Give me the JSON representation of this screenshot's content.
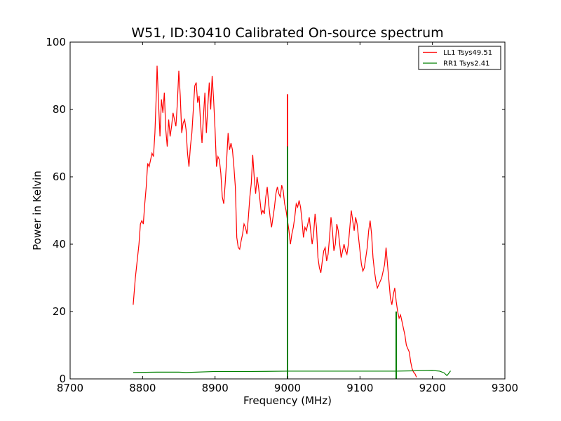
{
  "chart_data": {
    "type": "line",
    "title": "W51, ID:30410 Calibrated On-source spectrum",
    "xlabel": "Frequency (MHz)",
    "ylabel": "Power in Kelvin",
    "xlim": [
      8700,
      9300
    ],
    "ylim": [
      0,
      100
    ],
    "xticks": [
      8700,
      8800,
      8900,
      9000,
      9100,
      9200,
      9300
    ],
    "yticks": [
      0,
      20,
      40,
      60,
      80,
      100
    ],
    "grid": false,
    "legend_position": "top-right",
    "series": [
      {
        "name": "LL1 Tsys49.51",
        "color": "#ff0000",
        "points": [
          [
            8787,
            22
          ],
          [
            8790,
            30
          ],
          [
            8793,
            36
          ],
          [
            8795,
            40
          ],
          [
            8797,
            46
          ],
          [
            8799,
            47
          ],
          [
            8801,
            46
          ],
          [
            8803,
            52
          ],
          [
            8805,
            57
          ],
          [
            8807,
            64
          ],
          [
            8809,
            63
          ],
          [
            8811,
            65
          ],
          [
            8813,
            67
          ],
          [
            8815,
            66
          ],
          [
            8817,
            73
          ],
          [
            8819,
            85
          ],
          [
            8820,
            93
          ],
          [
            8822,
            82
          ],
          [
            8824,
            72
          ],
          [
            8826,
            83
          ],
          [
            8828,
            79
          ],
          [
            8830,
            85
          ],
          [
            8832,
            74
          ],
          [
            8834,
            69
          ],
          [
            8836,
            77
          ],
          [
            8838,
            72
          ],
          [
            8840,
            75
          ],
          [
            8842,
            79
          ],
          [
            8844,
            77
          ],
          [
            8846,
            75
          ],
          [
            8848,
            82
          ],
          [
            8850,
            91.5
          ],
          [
            8852,
            84
          ],
          [
            8854,
            73
          ],
          [
            8856,
            76
          ],
          [
            8858,
            77
          ],
          [
            8860,
            74
          ],
          [
            8862,
            67
          ],
          [
            8864,
            63
          ],
          [
            8866,
            69
          ],
          [
            8868,
            73
          ],
          [
            8870,
            80
          ],
          [
            8872,
            87
          ],
          [
            8874,
            88
          ],
          [
            8876,
            82
          ],
          [
            8878,
            84
          ],
          [
            8880,
            76
          ],
          [
            8882,
            70
          ],
          [
            8884,
            78
          ],
          [
            8886,
            85
          ],
          [
            8888,
            73
          ],
          [
            8890,
            81
          ],
          [
            8892,
            88
          ],
          [
            8894,
            80
          ],
          [
            8896,
            90
          ],
          [
            8898,
            83
          ],
          [
            8900,
            74
          ],
          [
            8902,
            63
          ],
          [
            8904,
            66
          ],
          [
            8906,
            65
          ],
          [
            8908,
            61
          ],
          [
            8910,
            54
          ],
          [
            8912,
            52
          ],
          [
            8914,
            58
          ],
          [
            8916,
            65
          ],
          [
            8918,
            73
          ],
          [
            8920,
            68
          ],
          [
            8922,
            70
          ],
          [
            8924,
            68
          ],
          [
            8926,
            63
          ],
          [
            8928,
            57
          ],
          [
            8930,
            42
          ],
          [
            8932,
            39
          ],
          [
            8934,
            38.5
          ],
          [
            8936,
            41
          ],
          [
            8938,
            43
          ],
          [
            8940,
            46
          ],
          [
            8942,
            45
          ],
          [
            8944,
            43
          ],
          [
            8946,
            48
          ],
          [
            8948,
            54
          ],
          [
            8950,
            58
          ],
          [
            8952,
            66.5
          ],
          [
            8954,
            60
          ],
          [
            8956,
            55
          ],
          [
            8958,
            60
          ],
          [
            8960,
            57
          ],
          [
            8962,
            53
          ],
          [
            8964,
            49
          ],
          [
            8966,
            50
          ],
          [
            8968,
            49
          ],
          [
            8970,
            54
          ],
          [
            8972,
            57
          ],
          [
            8974,
            52
          ],
          [
            8976,
            48
          ],
          [
            8978,
            45
          ],
          [
            8980,
            48
          ],
          [
            8982,
            51
          ],
          [
            8984,
            55
          ],
          [
            8986,
            57
          ],
          [
            8988,
            55
          ],
          [
            8990,
            54
          ],
          [
            8992,
            57.5
          ],
          [
            8994,
            56
          ],
          [
            8996,
            52
          ],
          [
            8998,
            50
          ],
          [
            9000,
            47
          ],
          [
            9002,
            44
          ],
          [
            9004,
            40
          ],
          [
            9006,
            43
          ],
          [
            9008,
            45
          ],
          [
            9010,
            48
          ],
          [
            9012,
            52
          ],
          [
            9014,
            51
          ],
          [
            9016,
            53
          ],
          [
            9018,
            51
          ],
          [
            9020,
            47
          ],
          [
            9022,
            42
          ],
          [
            9024,
            45
          ],
          [
            9026,
            44
          ],
          [
            9028,
            46
          ],
          [
            9030,
            48
          ],
          [
            9032,
            44
          ],
          [
            9034,
            40
          ],
          [
            9036,
            43
          ],
          [
            9038,
            49
          ],
          [
            9040,
            45
          ],
          [
            9042,
            36
          ],
          [
            9044,
            33
          ],
          [
            9046,
            31.5
          ],
          [
            9048,
            35
          ],
          [
            9050,
            38
          ],
          [
            9052,
            39
          ],
          [
            9054,
            35
          ],
          [
            9056,
            37
          ],
          [
            9058,
            42
          ],
          [
            9060,
            48
          ],
          [
            9062,
            44
          ],
          [
            9064,
            38
          ],
          [
            9066,
            40
          ],
          [
            9068,
            46
          ],
          [
            9070,
            44
          ],
          [
            9072,
            40
          ],
          [
            9074,
            36
          ],
          [
            9076,
            38
          ],
          [
            9078,
            40
          ],
          [
            9080,
            38
          ],
          [
            9082,
            37
          ],
          [
            9084,
            40
          ],
          [
            9086,
            45
          ],
          [
            9088,
            50
          ],
          [
            9090,
            47
          ],
          [
            9092,
            44
          ],
          [
            9094,
            48
          ],
          [
            9096,
            46
          ],
          [
            9098,
            42
          ],
          [
            9100,
            38
          ],
          [
            9102,
            34
          ],
          [
            9104,
            32
          ],
          [
            9106,
            33
          ],
          [
            9108,
            36
          ],
          [
            9110,
            39
          ],
          [
            9112,
            44
          ],
          [
            9114,
            47
          ],
          [
            9116,
            43
          ],
          [
            9118,
            36
          ],
          [
            9120,
            32
          ],
          [
            9122,
            29
          ],
          [
            9124,
            27
          ],
          [
            9126,
            28
          ],
          [
            9128,
            29
          ],
          [
            9130,
            30
          ],
          [
            9132,
            32
          ],
          [
            9134,
            34
          ],
          [
            9136,
            39
          ],
          [
            9138,
            34
          ],
          [
            9140,
            29
          ],
          [
            9142,
            24
          ],
          [
            9144,
            22
          ],
          [
            9146,
            25
          ],
          [
            9148,
            27
          ],
          [
            9150,
            23
          ],
          [
            9152,
            20
          ],
          [
            9154,
            18
          ],
          [
            9156,
            19
          ],
          [
            9158,
            17
          ],
          [
            9160,
            15
          ],
          [
            9162,
            13
          ],
          [
            9164,
            10
          ],
          [
            9166,
            9
          ],
          [
            9168,
            8
          ],
          [
            9170,
            5
          ],
          [
            9172,
            3
          ],
          [
            9174,
            2
          ],
          [
            9176,
            1.5
          ],
          [
            9178,
            0.5
          ]
        ],
        "spikes": [
          [
            9000,
            84.5
          ]
        ]
      },
      {
        "name": "RR1 Tsys2.41",
        "color": "#008000",
        "points": [
          [
            8787,
            1.9
          ],
          [
            8820,
            2.0
          ],
          [
            8850,
            2.0
          ],
          [
            8860,
            1.9
          ],
          [
            8900,
            2.2
          ],
          [
            8950,
            2.2
          ],
          [
            9000,
            2.3
          ],
          [
            9050,
            2.3
          ],
          [
            9100,
            2.3
          ],
          [
            9150,
            2.3
          ],
          [
            9200,
            2.5
          ],
          [
            9210,
            2.3
          ],
          [
            9216,
            1.8
          ],
          [
            9220,
            1.0
          ],
          [
            9222,
            1.5
          ],
          [
            9225,
            2.4
          ]
        ],
        "spikes": [
          [
            9000,
            69
          ],
          [
            9150,
            20
          ]
        ]
      }
    ]
  }
}
